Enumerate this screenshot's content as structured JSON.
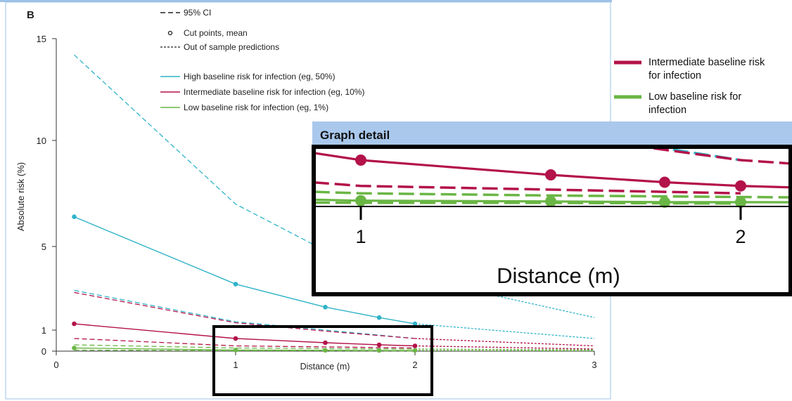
{
  "chart_data": {
    "type": "line",
    "panel_label": "B",
    "xlabel": "Distance (m)",
    "ylabel": "Absolute risk (%)",
    "xlim": [
      0,
      3
    ],
    "ylim": [
      0,
      15
    ],
    "x_ticks": [
      0,
      1,
      2,
      3
    ],
    "y_ticks": [
      0,
      1,
      5,
      10,
      15
    ],
    "colors": {
      "high": "#2fb3c9",
      "intermediate": "#b3124a",
      "low": "#6ab645"
    },
    "legend_top": {
      "ci": "95% CI",
      "cut_points": "Cut points, mean",
      "out_of_sample": "Out of sample predictions",
      "high": "High baseline risk for infection (eg, 50%)",
      "intermediate": "Intermediate baseline risk for infection (eg, 10%)",
      "low": "Low baseline risk for infection (eg, 1%)"
    },
    "series": [
      {
        "name": "High baseline risk for infection (eg, 50%)",
        "key": "high",
        "x": [
          0.1,
          1.0,
          1.5,
          1.8,
          2.0
        ],
        "mean": [
          6.4,
          3.2,
          2.1,
          1.6,
          1.3
        ],
        "upper": {
          "x": [
            0.1,
            1.0,
            1.5,
            2.0
          ],
          "y": [
            14.2,
            7.0,
            4.8,
            3.5
          ]
        },
        "lower": {
          "x": [
            0.1,
            1.0,
            1.5,
            2.0
          ],
          "y": [
            2.9,
            1.4,
            1.0,
            0.6
          ]
        },
        "oos": {
          "x": [
            2.0,
            3.0
          ],
          "mean": [
            1.3,
            0.6
          ],
          "upper": [
            3.5,
            1.6
          ]
        }
      },
      {
        "name": "Intermediate baseline risk for infection (eg, 10%)",
        "key": "intermediate",
        "x": [
          0.1,
          1.0,
          1.5,
          1.8,
          2.0
        ],
        "mean": [
          1.3,
          0.6,
          0.4,
          0.3,
          0.25
        ],
        "upper": {
          "x": [
            0.1,
            1.0,
            1.5,
            2.0
          ],
          "y": [
            2.8,
            1.35,
            0.95,
            0.6
          ]
        },
        "lower": {
          "x": [
            0.1,
            1.0,
            1.5,
            2.0
          ],
          "y": [
            0.6,
            0.25,
            0.2,
            0.15
          ]
        },
        "oos": {
          "x": [
            2.0,
            3.0
          ],
          "mean": [
            0.25,
            0.1
          ],
          "upper": [
            0.6,
            0.25
          ]
        }
      },
      {
        "name": "Low baseline risk for infection (eg, 1%)",
        "key": "low",
        "x": [
          0.1,
          1.0,
          1.5,
          1.8,
          2.0
        ],
        "mean": [
          0.15,
          0.05,
          0.04,
          0.03,
          0.03
        ],
        "upper": {
          "x": [
            0.1,
            1.0,
            1.5,
            2.0
          ],
          "y": [
            0.3,
            0.15,
            0.12,
            0.1
          ]
        },
        "lower": {
          "x": [
            0.1,
            1.0,
            1.5,
            2.0
          ],
          "y": [
            0.05,
            0.02,
            0.02,
            0.01
          ]
        },
        "oos": {
          "x": [
            2.0,
            3.0
          ],
          "mean": [
            0.03,
            0.02
          ],
          "upper": [
            0.1,
            0.06
          ]
        }
      }
    ]
  },
  "side_legend": {
    "intermediate": "Intermediate baseline risk for infection",
    "low": "Low baseline risk for infection"
  },
  "detail": {
    "title": "Graph detail",
    "tick_1": "1",
    "tick_2": "2",
    "xlabel": "Distance (m)"
  }
}
